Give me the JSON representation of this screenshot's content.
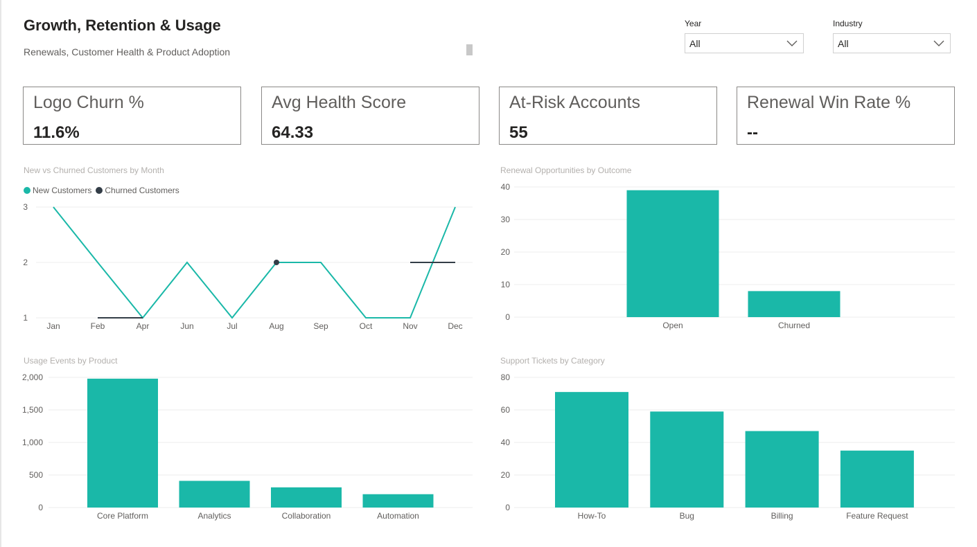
{
  "header": {
    "title": "Growth, Retention & Usage",
    "subtitle": "Renewals, Customer Health & Product Adoption"
  },
  "filters": {
    "year": {
      "label": "Year",
      "value": "All"
    },
    "industry": {
      "label": "Industry",
      "value": "All"
    }
  },
  "kpis": [
    {
      "label": "Logo Churn %",
      "value": "11.6%"
    },
    {
      "label": "Avg Health Score",
      "value": "64.33"
    },
    {
      "label": "At-Risk Accounts",
      "value": "55"
    },
    {
      "label": "Renewal Win Rate %",
      "value": "--"
    }
  ],
  "colors": {
    "teal": "#1ab8a8",
    "dark": "#333d47"
  },
  "chart_data": [
    {
      "type": "line",
      "title": "New vs Churned Customers by Month",
      "categories": [
        "Jan",
        "Feb",
        "Apr",
        "Jun",
        "Jul",
        "Aug",
        "Sep",
        "Oct",
        "Nov",
        "Dec"
      ],
      "ylim": [
        1,
        3
      ],
      "yticks": [
        "1",
        "2",
        "3"
      ],
      "legend": "top-left",
      "series": [
        {
          "name": "New Customers",
          "values": [
            3,
            2,
            1,
            2,
            1,
            2,
            2,
            1,
            1,
            3
          ],
          "color": "#1ab8a8"
        },
        {
          "name": "Churned Customers",
          "values": [
            null,
            1,
            1,
            null,
            null,
            2,
            null,
            null,
            2,
            2
          ],
          "color": "#333d47"
        }
      ]
    },
    {
      "type": "bar",
      "title": "Renewal Opportunities by Outcome",
      "categories": [
        "Open",
        "Churned"
      ],
      "values": [
        39,
        8
      ],
      "ylim": [
        0,
        40
      ],
      "yticks": [
        "0",
        "10",
        "20",
        "30",
        "40"
      ]
    },
    {
      "type": "bar",
      "title": "Usage Events by Product",
      "categories": [
        "Core Platform",
        "Analytics",
        "Collaboration",
        "Automation"
      ],
      "values": [
        1980,
        410,
        310,
        205
      ],
      "ylim": [
        0,
        2000
      ],
      "yticks": [
        "0",
        "500",
        "1,000",
        "1,500",
        "2,000"
      ]
    },
    {
      "type": "bar",
      "title": "Support Tickets by Category",
      "categories": [
        "How-To",
        "Bug",
        "Billing",
        "Feature Request"
      ],
      "values": [
        71,
        59,
        47,
        35
      ],
      "ylim": [
        0,
        80
      ],
      "yticks": [
        "0",
        "20",
        "40",
        "60",
        "80"
      ]
    }
  ]
}
